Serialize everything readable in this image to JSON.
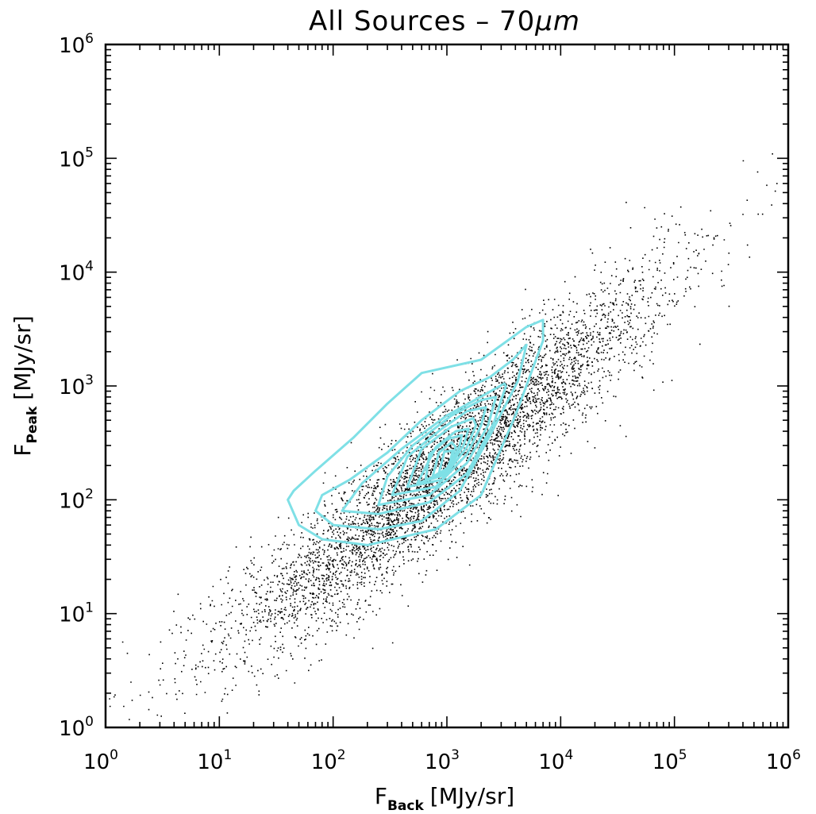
{
  "chart_data": {
    "type": "scatter",
    "title": "All Sources – 70μm",
    "title_main": "All Sources – 70",
    "title_unit": "μm",
    "x_scale": "log",
    "y_scale": "log",
    "xlim": [
      1,
      1000000
    ],
    "ylim": [
      1,
      1000000
    ],
    "xlabel": {
      "symbol": "F",
      "subscript": "Back",
      "unit": "[MJy/sr]"
    },
    "ylabel": {
      "symbol": "F",
      "subscript": "Peak",
      "unit": "[MJy/sr]"
    },
    "x_ticks": [
      {
        "base": "10",
        "exp": "0"
      },
      {
        "base": "10",
        "exp": "1"
      },
      {
        "base": "10",
        "exp": "2"
      },
      {
        "base": "10",
        "exp": "3"
      },
      {
        "base": "10",
        "exp": "4"
      },
      {
        "base": "10",
        "exp": "5"
      },
      {
        "base": "10",
        "exp": "6"
      }
    ],
    "y_ticks": [
      {
        "base": "10",
        "exp": "0"
      },
      {
        "base": "10",
        "exp": "1"
      },
      {
        "base": "10",
        "exp": "2"
      },
      {
        "base": "10",
        "exp": "3"
      },
      {
        "base": "10",
        "exp": "4"
      },
      {
        "base": "10",
        "exp": "5"
      },
      {
        "base": "10",
        "exp": "6"
      }
    ],
    "grid": false,
    "point_color": "#000000",
    "contour_color": "#7fe0e6",
    "density_peak": {
      "x": 1000,
      "y": 200
    },
    "contours": [
      {
        "level": 1,
        "points": [
          [
            40,
            100
          ],
          [
            50,
            60
          ],
          [
            80,
            45
          ],
          [
            200,
            40
          ],
          [
            800,
            55
          ],
          [
            2000,
            110
          ],
          [
            4000,
            550
          ],
          [
            7000,
            2500
          ],
          [
            7000,
            3800
          ],
          [
            5000,
            3300
          ],
          [
            2000,
            1700
          ],
          [
            600,
            1300
          ],
          [
            300,
            700
          ],
          [
            150,
            350
          ],
          [
            70,
            180
          ],
          [
            45,
            120
          ],
          [
            40,
            100
          ]
        ]
      },
      {
        "level": 2,
        "points": [
          [
            70,
            80
          ],
          [
            100,
            60
          ],
          [
            250,
            55
          ],
          [
            600,
            65
          ],
          [
            1300,
            120
          ],
          [
            2500,
            400
          ],
          [
            4200,
            1100
          ],
          [
            5000,
            2300
          ],
          [
            3800,
            1700
          ],
          [
            2400,
            1200
          ],
          [
            1300,
            900
          ],
          [
            600,
            500
          ],
          [
            300,
            260
          ],
          [
            140,
            150
          ],
          [
            80,
            110
          ],
          [
            70,
            80
          ]
        ]
      },
      {
        "level": 3,
        "points": [
          [
            120,
            80
          ],
          [
            250,
            75
          ],
          [
            700,
            95
          ],
          [
            1500,
            170
          ],
          [
            2600,
            480
          ],
          [
            3300,
            1000
          ],
          [
            3200,
            1050
          ],
          [
            2200,
            850
          ],
          [
            1000,
            550
          ],
          [
            400,
            280
          ],
          [
            180,
            140
          ],
          [
            120,
            80
          ]
        ]
      },
      {
        "level": 4,
        "points": [
          [
            250,
            90
          ],
          [
            700,
            110
          ],
          [
            1500,
            210
          ],
          [
            2300,
            450
          ],
          [
            2700,
            800
          ],
          [
            2000,
            750
          ],
          [
            1100,
            550
          ],
          [
            500,
            300
          ],
          [
            300,
            160
          ],
          [
            250,
            90
          ]
        ]
      },
      {
        "level": 5,
        "points": [
          [
            330,
            110
          ],
          [
            800,
            130
          ],
          [
            1500,
            250
          ],
          [
            2000,
            450
          ],
          [
            2200,
            650
          ],
          [
            1500,
            600
          ],
          [
            900,
            420
          ],
          [
            450,
            240
          ],
          [
            330,
            110
          ]
        ]
      },
      {
        "level": 6,
        "points": [
          [
            450,
            130
          ],
          [
            900,
            150
          ],
          [
            1500,
            290
          ],
          [
            1800,
            450
          ],
          [
            1700,
            520
          ],
          [
            1100,
            440
          ],
          [
            600,
            280
          ],
          [
            450,
            130
          ]
        ]
      },
      {
        "level": 7,
        "points": [
          [
            550,
            140
          ],
          [
            950,
            165
          ],
          [
            1400,
            300
          ],
          [
            1550,
            420
          ],
          [
            1200,
            400
          ],
          [
            800,
            290
          ],
          [
            550,
            140
          ]
        ]
      },
      {
        "level": 8,
        "points": [
          [
            650,
            150
          ],
          [
            1000,
            175
          ],
          [
            1300,
            300
          ],
          [
            1350,
            370
          ],
          [
            1000,
            340
          ],
          [
            700,
            250
          ],
          [
            650,
            150
          ]
        ]
      },
      {
        "level": 9,
        "points": [
          [
            750,
            160
          ],
          [
            1000,
            185
          ],
          [
            1200,
            290
          ],
          [
            1100,
            320
          ],
          [
            850,
            260
          ],
          [
            750,
            160
          ]
        ]
      },
      {
        "level": 10,
        "points": [
          [
            850,
            170
          ],
          [
            1050,
            195
          ],
          [
            1120,
            270
          ],
          [
            950,
            265
          ],
          [
            850,
            170
          ]
        ]
      }
    ]
  }
}
